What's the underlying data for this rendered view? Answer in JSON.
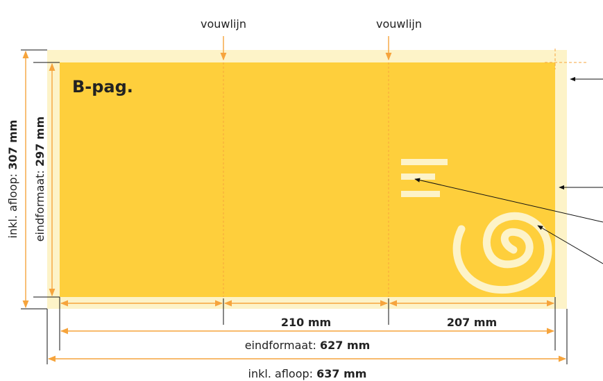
{
  "fold_labels": [
    "vouwlijn",
    "vouwlijn"
  ],
  "page_label": "B-pag.",
  "height_bleed": {
    "label": "inkl. afloop:",
    "value": "307 mm"
  },
  "height_final": {
    "label": "eindformaat:",
    "value": "297 mm"
  },
  "panel_widths": [
    "210 mm",
    "207 mm"
  ],
  "width_final": {
    "label": "eindformaat:",
    "value": "627 mm"
  },
  "width_bleed": {
    "label": "inkl. afloop:",
    "value": "637 mm"
  }
}
